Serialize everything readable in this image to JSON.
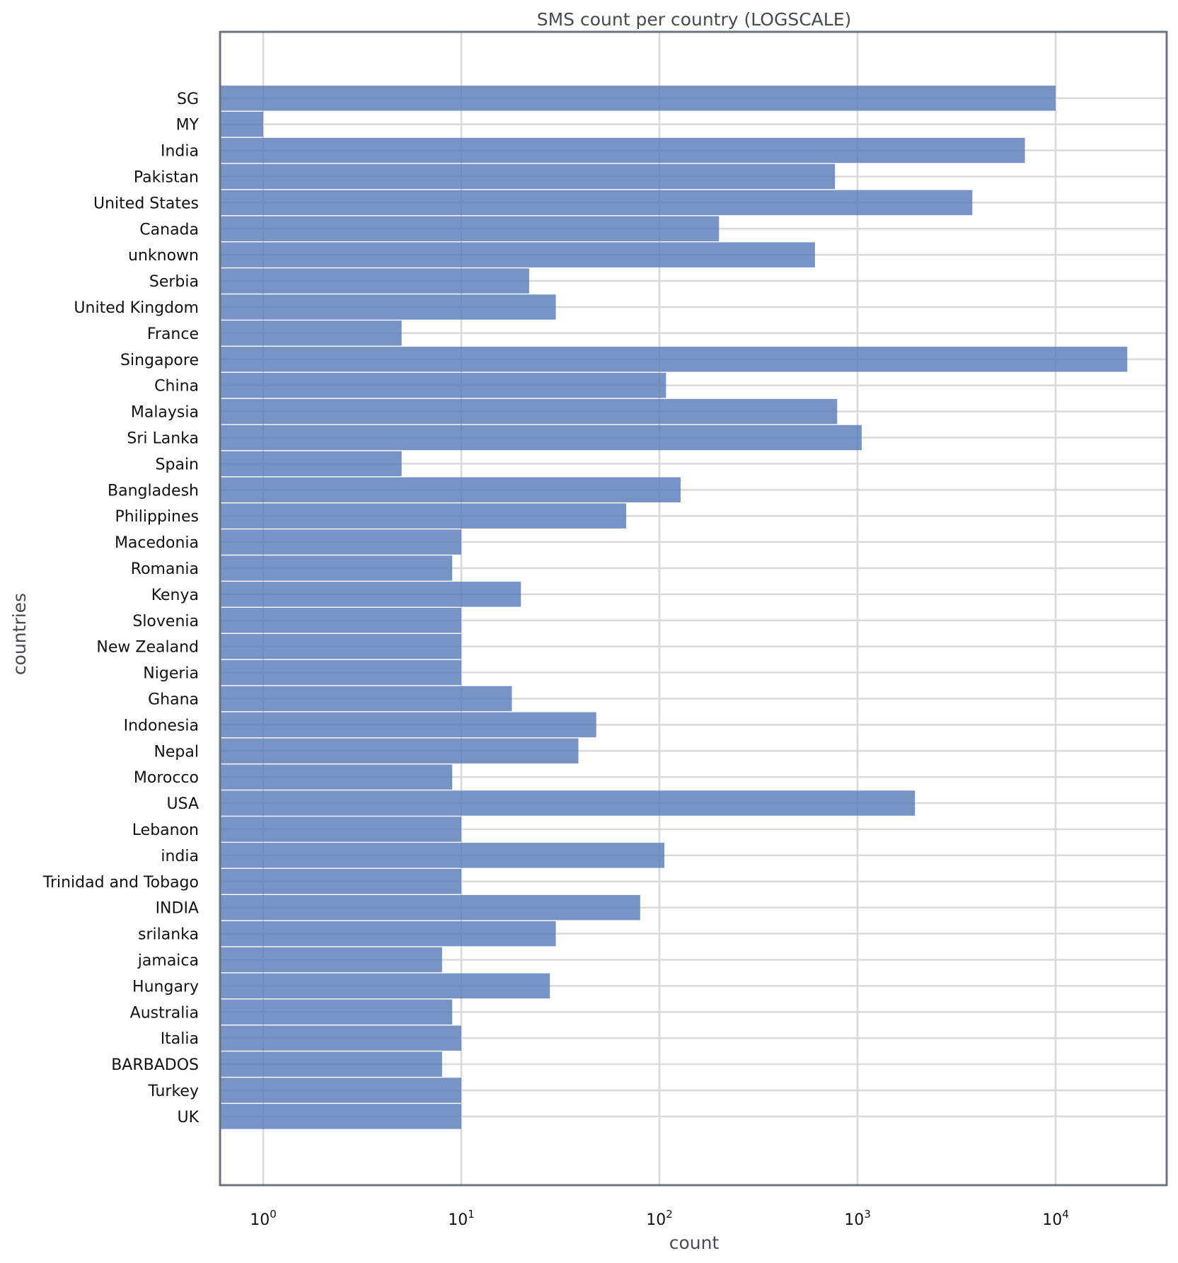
{
  "chart_data": {
    "type": "bar",
    "orientation": "horizontal",
    "title": "SMS count per country (LOGSCALE)",
    "xlabel": "count",
    "ylabel": "countries",
    "x_scale": "log",
    "xlim": [
      0.6,
      40000
    ],
    "x_ticks": [
      1,
      10,
      100,
      1000,
      10000
    ],
    "x_tick_labels": [
      {
        "base": "10",
        "exp": "0"
      },
      {
        "base": "10",
        "exp": "1"
      },
      {
        "base": "10",
        "exp": "2"
      },
      {
        "base": "10",
        "exp": "3"
      },
      {
        "base": "10",
        "exp": "4"
      }
    ],
    "grid": true,
    "bar_color": "#5a7dba",
    "frame_color": "#6b7280",
    "grid_color": "#d9d9d9",
    "categories": [
      "SG",
      "MY",
      "India",
      "Pakistan",
      "United States",
      "Canada",
      "unknown",
      "Serbia",
      "United Kingdom",
      "France",
      "Singapore",
      "China",
      "Malaysia",
      "Sri Lanka",
      "Spain",
      "Bangladesh",
      "Philippines",
      "Macedonia",
      "Romania",
      "Kenya",
      "Slovenia",
      "New Zealand",
      "Nigeria",
      "Ghana",
      "Indonesia",
      "Nepal",
      "Morocco",
      "USA",
      "Lebanon",
      "india",
      "Trinidad and Tobago",
      "INDIA",
      "srilanka",
      "jamaica",
      "Hungary",
      "Australia",
      "Italia",
      "BARBADOS",
      "Turkey",
      "UK"
    ],
    "values": [
      10000,
      1,
      7000,
      770,
      3800,
      200,
      610,
      22,
      30,
      5,
      23000,
      108,
      790,
      1050,
      5,
      128,
      68,
      10,
      9,
      20,
      10,
      10,
      10,
      18,
      48,
      39,
      9,
      1950,
      10,
      106,
      10,
      80,
      30,
      8,
      28,
      9,
      10,
      8,
      10,
      10
    ]
  }
}
